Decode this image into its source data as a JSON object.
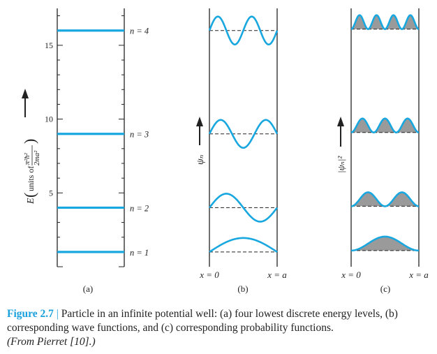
{
  "colors": {
    "curve": "#19a7e0",
    "fill": "#9a9a9a",
    "axis": "#222222",
    "caption_accent": "#1aa0dc"
  },
  "panel_a": {
    "ticks": [
      {
        "value": 5,
        "label": "5"
      },
      {
        "value": 10,
        "label": "10"
      },
      {
        "value": 15,
        "label": "15"
      }
    ],
    "y_range": [
      0,
      17.5
    ],
    "levels": [
      {
        "n": 1,
        "energy": 1,
        "label": "n = 1"
      },
      {
        "n": 2,
        "energy": 4,
        "label": "n = 2"
      },
      {
        "n": 3,
        "energy": 9,
        "label": "n = 3"
      },
      {
        "n": 4,
        "energy": 16,
        "label": "n = 4"
      }
    ],
    "ylabel_main": "E",
    "ylabel_units": "units of",
    "ylabel_num": "π²ħ²",
    "ylabel_den": "2ma²",
    "panel_label": "(a)"
  },
  "panel_b": {
    "ylabel": "ψₙ",
    "x_left": "x = 0",
    "x_right": "x = a",
    "panel_label": "(b)"
  },
  "panel_c": {
    "ylabel": "|ψₙ|²",
    "x_left": "x = 0",
    "x_right": "x = a",
    "panel_label": "(c)"
  },
  "caption": {
    "figure_label": "Figure 2.7",
    "separator": "|",
    "text": "Particle in an infinite potential well: (a) four lowest discrete energy levels, (b) corresponding wave functions, and (c) corresponding probability functions.",
    "source": "(From Pierret [10].)"
  }
}
